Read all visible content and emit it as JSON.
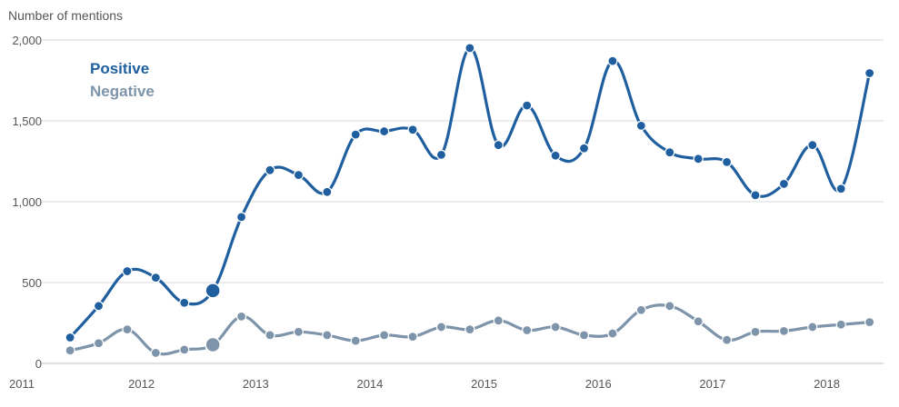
{
  "chart_data": {
    "type": "line",
    "ylabel": "Number of mentions",
    "ylim": [
      0,
      2000
    ],
    "xlim": [
      2011,
      2018.35
    ],
    "yticks": [
      0,
      500,
      1000,
      1500,
      2000
    ],
    "ytick_labels": [
      "0",
      "500",
      "1,000",
      "1,500",
      "2,000"
    ],
    "xticks": [
      2011,
      2012,
      2013,
      2014,
      2015,
      2016,
      2017,
      2018
    ],
    "xtick_labels": [
      "2011",
      "2012",
      "2013",
      "2014",
      "2015",
      "2016",
      "2017",
      "2018"
    ],
    "grid": true,
    "legend_position": "top-left",
    "x": [
      2011.375,
      2011.625,
      2011.875,
      2012.125,
      2012.375,
      2012.625,
      2012.875,
      2013.125,
      2013.375,
      2013.625,
      2013.875,
      2014.125,
      2014.375,
      2014.625,
      2014.875,
      2015.125,
      2015.375,
      2015.625,
      2015.875,
      2016.125,
      2016.375,
      2016.625,
      2016.875,
      2017.125,
      2017.375,
      2017.625,
      2017.875,
      2018.125,
      2018.375
    ],
    "series": [
      {
        "name": "Positive",
        "color": "#1f5f9f",
        "values": [
          160,
          355,
          570,
          530,
          375,
          450,
          905,
          1195,
          1165,
          1060,
          1415,
          1435,
          1445,
          1290,
          1950,
          1350,
          1595,
          1285,
          1330,
          1870,
          1470,
          1305,
          1265,
          1245,
          1040,
          1110,
          1350,
          1080,
          1795
        ],
        "highlight_index": 5
      },
      {
        "name": "Negative",
        "color": "#7e94aa",
        "values": [
          80,
          125,
          210,
          65,
          85,
          115,
          290,
          175,
          195,
          175,
          140,
          175,
          165,
          225,
          210,
          265,
          205,
          225,
          175,
          185,
          330,
          355,
          260,
          145,
          195,
          200,
          225,
          240,
          255
        ],
        "highlight_index": 5
      }
    ]
  }
}
